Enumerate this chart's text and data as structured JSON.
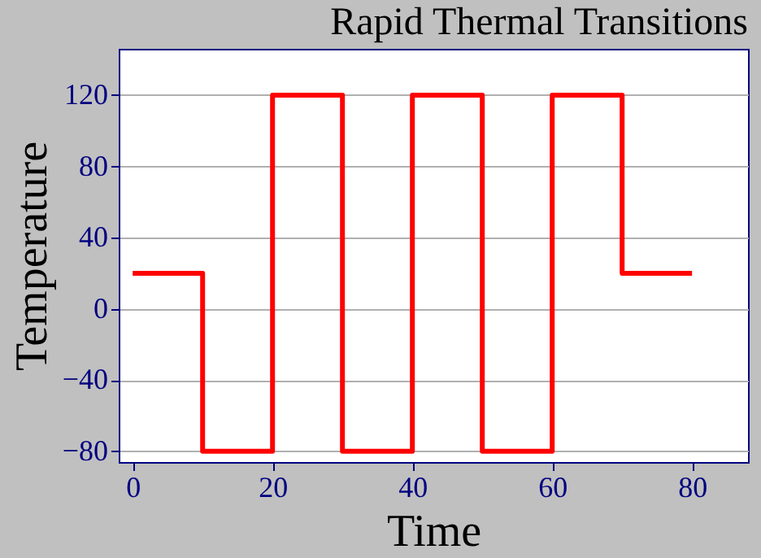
{
  "chart_data": {
    "type": "step",
    "title": "Rapid Thermal Transitions",
    "xlabel": "Time",
    "ylabel": "Temperature",
    "x": [
      0,
      10,
      20,
      30,
      40,
      50,
      60,
      70,
      80
    ],
    "series": [
      {
        "color": "#ff0000",
        "values": [
          20,
          -80,
          120,
          -80,
          120,
          -80,
          120,
          20,
          20
        ]
      }
    ],
    "xlim": [
      -2,
      88
    ],
    "xticks": [
      0,
      20,
      40,
      60,
      80
    ],
    "ylim": [
      -86,
      146
    ],
    "yticks": [
      -80,
      -40,
      0,
      40,
      80,
      120
    ],
    "grid": "y",
    "marker": "none",
    "line_style": "solid"
  }
}
